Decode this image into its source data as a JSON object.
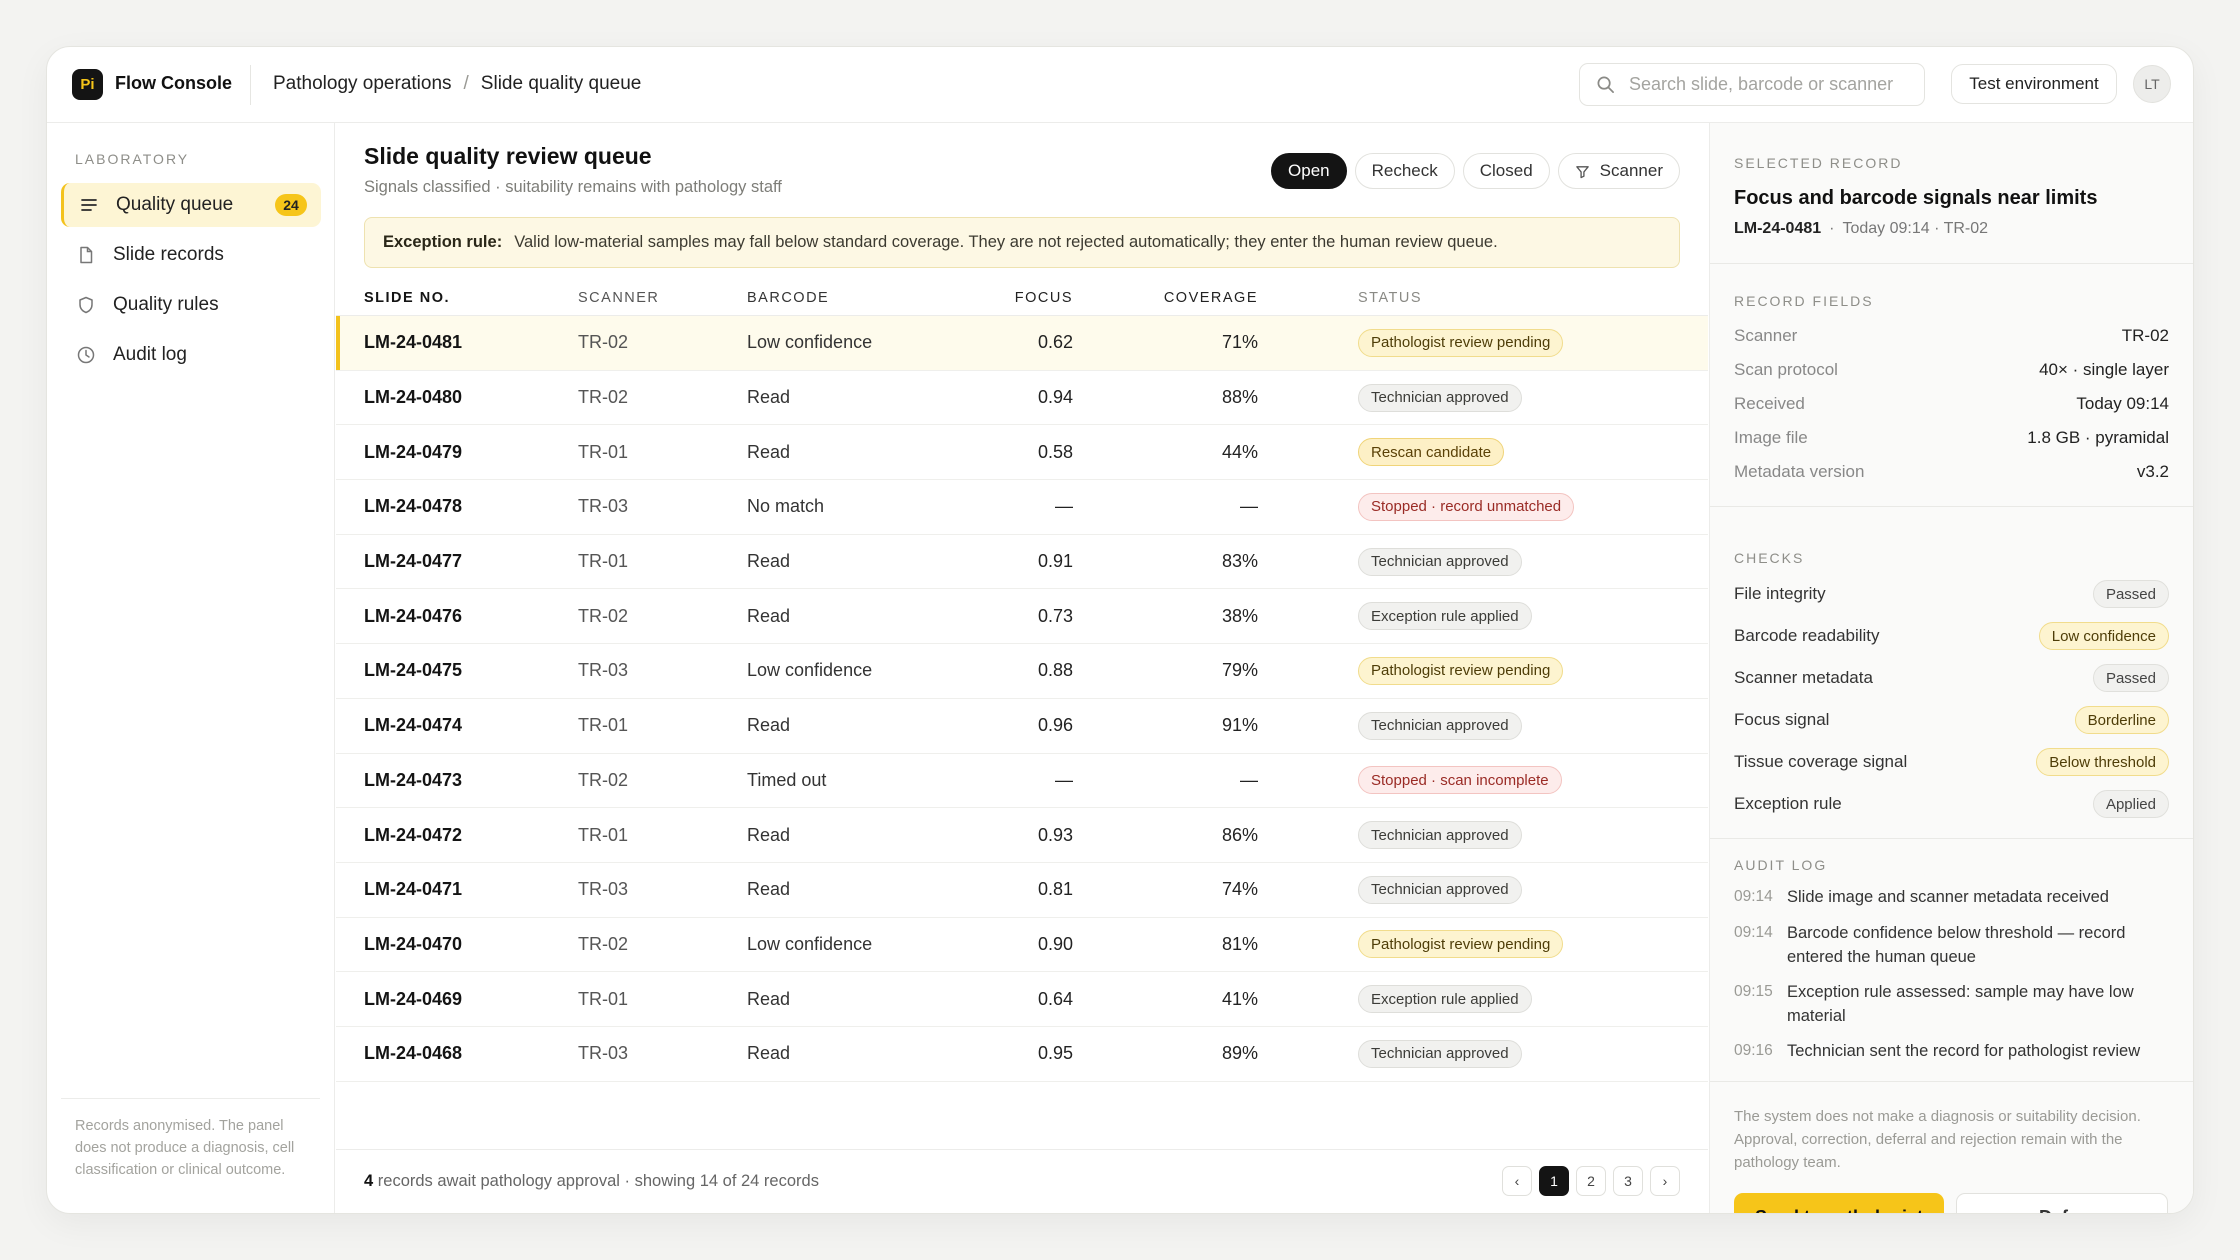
{
  "app": {
    "logo": "Pi",
    "title": "Flow Console"
  },
  "breadcrumb": {
    "section": "Pathology operations",
    "separator": "/",
    "page": "Slide quality queue"
  },
  "search": {
    "placeholder": "Search slide, barcode or scanner"
  },
  "environment_label": "Test environment",
  "user_initials": "LT",
  "sidebar": {
    "heading": "LABORATORY",
    "items": [
      {
        "label": "Quality queue",
        "icon": "list-icon",
        "badge": "24"
      },
      {
        "label": "Slide records",
        "icon": "file-icon"
      },
      {
        "label": "Quality rules",
        "icon": "shield-icon"
      },
      {
        "label": "Audit log",
        "icon": "clock-icon"
      }
    ],
    "note": "Records anonymised. The panel does not produce a diagnosis, cell classification or clinical outcome."
  },
  "main": {
    "title": "Slide quality review queue",
    "subtitle": "Signals classified · suitability remains with pathology staff",
    "filters": [
      "Open",
      "Recheck",
      "Closed",
      "Scanner"
    ],
    "exception_label": "Exception rule:",
    "exception_text": "Valid low-material samples may fall below standard coverage. They are not rejected automatically; they enter the human review queue.",
    "columns": [
      "SLIDE NO.",
      "SCANNER",
      "BARCODE",
      "FOCUS",
      "COVERAGE",
      "STATUS"
    ],
    "rows": [
      {
        "slide": "LM-24-0481",
        "scanner": "TR-02",
        "barcode": "Low confidence",
        "focus": "0.62",
        "coverage": "71%",
        "status": "Pathologist review pending",
        "kind": "pend"
      },
      {
        "slide": "LM-24-0480",
        "scanner": "TR-02",
        "barcode": "Read",
        "focus": "0.94",
        "coverage": "88%",
        "status": "Technician approved",
        "kind": "ok"
      },
      {
        "slide": "LM-24-0479",
        "scanner": "TR-01",
        "barcode": "Read",
        "focus": "0.58",
        "coverage": "44%",
        "status": "Rescan candidate",
        "kind": "rescan"
      },
      {
        "slide": "LM-24-0478",
        "scanner": "TR-03",
        "barcode": "No match",
        "focus": "—",
        "coverage": "—",
        "status": "Stopped · record unmatched",
        "kind": "stop"
      },
      {
        "slide": "LM-24-0477",
        "scanner": "TR-01",
        "barcode": "Read",
        "focus": "0.91",
        "coverage": "83%",
        "status": "Technician approved",
        "kind": "ok"
      },
      {
        "slide": "LM-24-0476",
        "scanner": "TR-02",
        "barcode": "Read",
        "focus": "0.73",
        "coverage": "38%",
        "status": "Exception rule applied",
        "kind": "ok"
      },
      {
        "slide": "LM-24-0475",
        "scanner": "TR-03",
        "barcode": "Low confidence",
        "focus": "0.88",
        "coverage": "79%",
        "status": "Pathologist review pending",
        "kind": "pend"
      },
      {
        "slide": "LM-24-0474",
        "scanner": "TR-01",
        "barcode": "Read",
        "focus": "0.96",
        "coverage": "91%",
        "status": "Technician approved",
        "kind": "ok"
      },
      {
        "slide": "LM-24-0473",
        "scanner": "TR-02",
        "barcode": "Timed out",
        "focus": "—",
        "coverage": "—",
        "status": "Stopped · scan incomplete",
        "kind": "stop"
      },
      {
        "slide": "LM-24-0472",
        "scanner": "TR-01",
        "barcode": "Read",
        "focus": "0.93",
        "coverage": "86%",
        "status": "Technician approved",
        "kind": "ok"
      },
      {
        "slide": "LM-24-0471",
        "scanner": "TR-03",
        "barcode": "Read",
        "focus": "0.81",
        "coverage": "74%",
        "status": "Technician approved",
        "kind": "ok"
      },
      {
        "slide": "LM-24-0470",
        "scanner": "TR-02",
        "barcode": "Low confidence",
        "focus": "0.90",
        "coverage": "81%",
        "status": "Pathologist review pending",
        "kind": "pend"
      },
      {
        "slide": "LM-24-0469",
        "scanner": "TR-01",
        "barcode": "Read",
        "focus": "0.64",
        "coverage": "41%",
        "status": "Exception rule applied",
        "kind": "ok"
      },
      {
        "slide": "LM-24-0468",
        "scanner": "TR-03",
        "barcode": "Read",
        "focus": "0.95",
        "coverage": "89%",
        "status": "Technician approved",
        "kind": "ok"
      }
    ],
    "footer_count": "4",
    "footer_text": "records await pathology approval · showing 14 of 24 records",
    "pages": [
      "‹",
      "1",
      "2",
      "3",
      "›"
    ]
  },
  "panel": {
    "selected_heading": "SELECTED RECORD",
    "title": "Focus and barcode signals near limits",
    "record_id": "LM-24-0481",
    "meta_dot": "·",
    "meta": "Today 09:14 · TR-02",
    "fields_heading": "RECORD FIELDS",
    "fields": [
      {
        "k": "Scanner",
        "v": "TR-02"
      },
      {
        "k": "Scan protocol",
        "v": "40× · single layer"
      },
      {
        "k": "Received",
        "v": "Today 09:14"
      },
      {
        "k": "Image file",
        "v": "1.8 GB · pyramidal"
      },
      {
        "k": "Metadata version",
        "v": "v3.2"
      }
    ],
    "checks_heading": "CHECKS",
    "checks": [
      {
        "k": "File integrity",
        "v": "Passed",
        "tone": "g"
      },
      {
        "k": "Barcode readability",
        "v": "Low confidence",
        "tone": "y"
      },
      {
        "k": "Scanner metadata",
        "v": "Passed",
        "tone": "g"
      },
      {
        "k": "Focus signal",
        "v": "Borderline",
        "tone": "y"
      },
      {
        "k": "Tissue coverage signal",
        "v": "Below threshold",
        "tone": "y"
      },
      {
        "k": "Exception rule",
        "v": "Applied",
        "tone": "g"
      }
    ],
    "audit_heading": "AUDIT LOG",
    "audit": [
      {
        "t": "09:14",
        "text": "Slide image and scanner metadata received"
      },
      {
        "t": "09:14",
        "text": "Barcode confidence below threshold — record entered the human queue"
      },
      {
        "t": "09:15",
        "text": "Exception rule assessed: sample may have low material"
      },
      {
        "t": "09:16",
        "text": "Technician sent the record for pathologist review"
      }
    ],
    "note": "The system does not make a diagnosis or suitability decision. Approval, correction, deferral and rejection remain with the pathology team.",
    "send_label": "Send to pathologist",
    "defer_label": "Defer"
  }
}
